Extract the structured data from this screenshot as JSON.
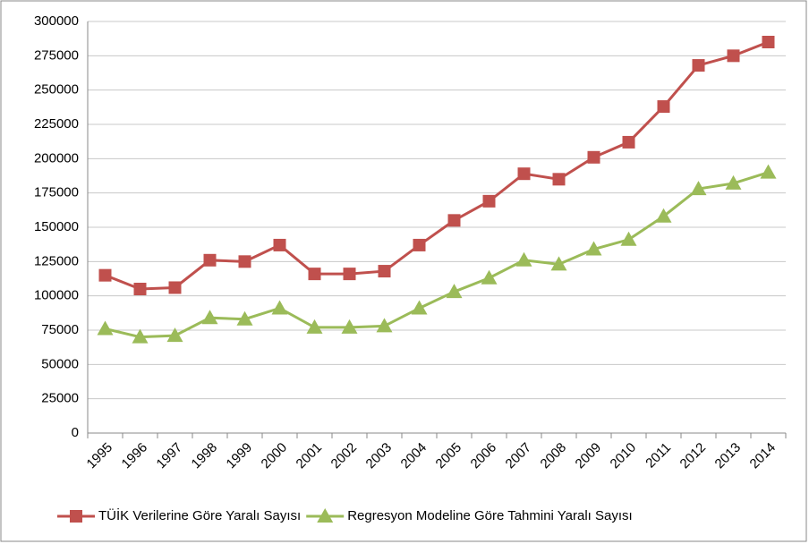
{
  "chart_data": {
    "type": "line",
    "categories": [
      "1995",
      "1996",
      "1997",
      "1998",
      "1999",
      "2000",
      "2001",
      "2002",
      "2003",
      "2004",
      "2005",
      "2006",
      "2007",
      "2008",
      "2009",
      "2010",
      "2011",
      "2012",
      "2013",
      "2014"
    ],
    "series": [
      {
        "name": "TÜİK Verilerine Göre Yaralı Sayısı",
        "color": "#c0504d",
        "marker": "square",
        "values": [
          115000,
          105000,
          106000,
          126000,
          125000,
          137000,
          116000,
          116000,
          118000,
          137000,
          155000,
          169000,
          189000,
          185000,
          201000,
          212000,
          238000,
          268000,
          275000,
          285000
        ]
      },
      {
        "name": "Regresyon Modeline Göre Tahmini Yaralı Sayısı",
        "color": "#9bbb59",
        "marker": "triangle",
        "values": [
          76000,
          70000,
          71000,
          84000,
          83000,
          91000,
          77000,
          77000,
          78000,
          91000,
          103000,
          113000,
          126000,
          123000,
          134000,
          141000,
          158000,
          178000,
          182000,
          190000
        ]
      }
    ],
    "ylim": [
      0,
      300000
    ],
    "yticks": [
      0,
      25000,
      50000,
      75000,
      100000,
      125000,
      150000,
      175000,
      200000,
      225000,
      250000,
      275000,
      300000
    ],
    "grid": true,
    "legend": "bottom"
  }
}
